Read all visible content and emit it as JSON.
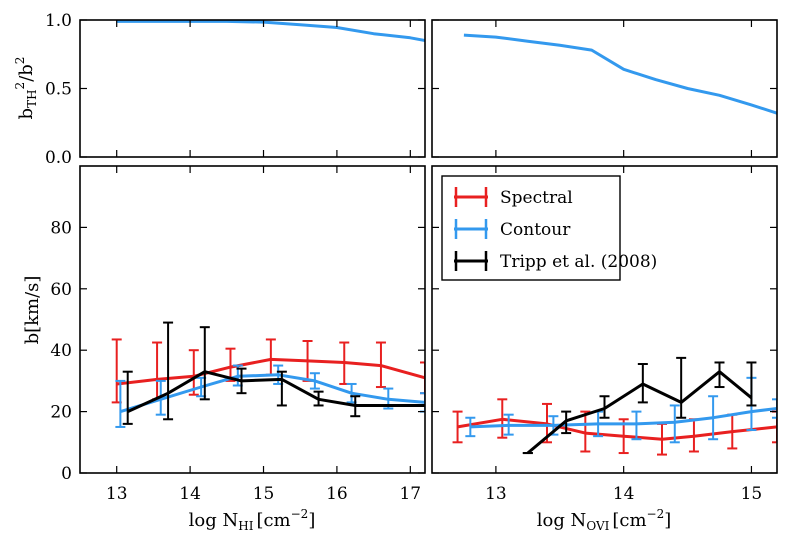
{
  "chart_data": [
    {
      "id": "top_left",
      "type": "line",
      "ylabel": "b_TH^2/b^2",
      "xlim": [
        12.5,
        17.2
      ],
      "ylim": [
        0.0,
        1.0
      ],
      "yticks": [
        0.0,
        0.5,
        1.0
      ],
      "ytick_labels": [
        "0.0",
        "0.5",
        "1.0"
      ],
      "series": [
        {
          "name": "Contour",
          "color": "#3399ee",
          "x": [
            13.0,
            13.5,
            14.0,
            14.5,
            15.0,
            15.5,
            16.0,
            16.5,
            17.0,
            17.2
          ],
          "y": [
            0.99,
            0.99,
            0.99,
            0.99,
            0.985,
            0.965,
            0.945,
            0.9,
            0.87,
            0.85
          ]
        }
      ]
    },
    {
      "id": "top_right",
      "type": "line",
      "xlim": [
        12.5,
        15.2
      ],
      "ylim": [
        0.0,
        1.0
      ],
      "series": [
        {
          "name": "Contour",
          "color": "#3399ee",
          "x": [
            12.75,
            13.0,
            13.25,
            13.5,
            13.75,
            14.0,
            14.25,
            14.5,
            14.75,
            15.0,
            15.2
          ],
          "y": [
            0.89,
            0.875,
            0.845,
            0.815,
            0.78,
            0.64,
            0.565,
            0.5,
            0.45,
            0.38,
            0.32
          ]
        }
      ]
    },
    {
      "id": "bottom_left",
      "type": "line",
      "xlabel_prefix": "log N",
      "xlabel_sub": "HI",
      "xlabel_suffix": "[cm",
      "xlabel_sup": "−2",
      "xlabel_end": "]",
      "ylabel": "b[km/s]",
      "xlim": [
        12.5,
        17.2
      ],
      "ylim": [
        0,
        100
      ],
      "xticks": [
        13,
        14,
        15,
        16,
        17
      ],
      "xtick_labels": [
        "13",
        "14",
        "15",
        "16",
        "17"
      ],
      "yticks": [
        0,
        20,
        40,
        60,
        80
      ],
      "ytick_labels": [
        "0",
        "20",
        "40",
        "60",
        "80"
      ],
      "series": [
        {
          "name": "Spectral",
          "color": "#e82020",
          "x": [
            13.0,
            13.55,
            14.05,
            14.55,
            15.1,
            15.6,
            16.1,
            16.6,
            17.2
          ],
          "y": [
            29,
            30.5,
            31.5,
            34.5,
            37,
            36.5,
            36,
            35,
            31
          ],
          "lo": [
            23,
            24,
            25.5,
            30,
            32,
            30,
            29,
            28,
            26
          ],
          "hi": [
            43.5,
            42.5,
            40,
            40.5,
            43.5,
            43,
            42.5,
            42.5,
            36
          ]
        },
        {
          "name": "Contour",
          "color": "#3399ee",
          "x": [
            13.05,
            13.6,
            14.15,
            14.65,
            15.2,
            15.7,
            16.2,
            16.7,
            17.2
          ],
          "y": [
            20,
            24,
            28,
            31.5,
            32,
            30,
            26,
            24,
            23
          ],
          "lo": [
            15,
            19,
            25,
            28.5,
            29,
            27.5,
            23,
            21,
            20
          ],
          "hi": [
            30,
            30,
            31,
            35,
            35,
            32.5,
            29,
            27.5,
            26
          ]
        },
        {
          "name": "Tripp et al. (2008)",
          "color": "#000000",
          "x": [
            13.15,
            13.7,
            14.2,
            14.7,
            15.25,
            15.75,
            16.25,
            17.2
          ],
          "y": [
            20,
            26,
            33,
            30,
            30.5,
            24,
            22,
            22
          ],
          "lo": [
            16,
            17.5,
            24,
            26,
            22,
            22,
            18.5,
            22
          ],
          "hi": [
            33,
            49,
            47.5,
            34,
            33,
            26.5,
            25,
            22
          ]
        }
      ]
    },
    {
      "id": "bottom_right",
      "type": "line",
      "xlabel_prefix": "log N",
      "xlabel_sub": "OVI",
      "xlabel_suffix": "[cm",
      "xlabel_sup": "−2",
      "xlabel_end": "]",
      "xlim": [
        12.5,
        15.2
      ],
      "ylim": [
        0,
        100
      ],
      "xticks": [
        13,
        14,
        15
      ],
      "xtick_labels": [
        "13",
        "14",
        "15"
      ],
      "series": [
        {
          "name": "Spectral",
          "color": "#e82020",
          "x": [
            12.7,
            13.05,
            13.4,
            13.7,
            14.0,
            14.3,
            14.55,
            14.85,
            15.2
          ],
          "y": [
            15,
            17.5,
            16,
            13,
            12,
            11,
            12,
            13.5,
            15
          ],
          "lo": [
            10,
            11.5,
            10,
            7,
            6.5,
            6,
            7,
            8,
            10
          ],
          "hi": [
            20,
            24,
            22.5,
            20,
            17.5,
            16,
            17.5,
            19,
            20
          ]
        },
        {
          "name": "Contour",
          "color": "#3399ee",
          "x": [
            12.8,
            13.1,
            13.45,
            13.8,
            14.1,
            14.4,
            14.7,
            15.0,
            15.2
          ],
          "y": [
            15,
            15.5,
            15.5,
            16,
            16,
            16.5,
            18,
            20,
            21
          ],
          "lo": [
            12,
            12.5,
            12.5,
            12,
            11,
            10,
            11,
            14,
            18
          ],
          "hi": [
            18,
            19,
            18.5,
            20,
            20,
            22,
            25,
            31,
            24
          ]
        },
        {
          "name": "Tripp et al. (2008)",
          "color": "#000000",
          "x": [
            13.25,
            13.55,
            13.85,
            14.15,
            14.45,
            14.75,
            15.0
          ],
          "y": [
            6.5,
            17,
            21,
            29,
            23,
            33,
            24.5
          ],
          "lo": [
            6.5,
            13,
            18,
            23,
            18,
            28,
            22
          ],
          "hi": [
            6.5,
            20,
            25,
            35.5,
            37.5,
            36,
            36
          ]
        }
      ],
      "legend": {
        "placement": "top-left",
        "entries": [
          "Spectral",
          "Contour",
          "Tripp et al. (2008)"
        ],
        "colors": [
          "#e82020",
          "#3399ee",
          "#000000"
        ]
      }
    }
  ],
  "labels": {
    "top_ylabel_main": "b",
    "top_ylabel_sub": "TH",
    "top_ylabel_sup": "2",
    "top_ylabel_tail": "/b",
    "top_ylabel_sup2": "2"
  }
}
